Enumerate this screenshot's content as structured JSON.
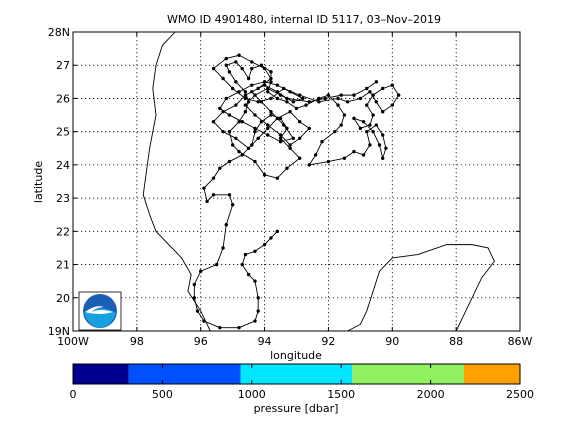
{
  "chart_data": [
    {
      "type": "line",
      "title": "WMO ID 4901480, internal ID 5117, 03–Nov–2019",
      "xlabel": "longitude",
      "ylabel": "latitude",
      "xlim": [
        -100,
        -86
      ],
      "ylim": [
        19,
        28
      ],
      "grid": true,
      "x_ticks": [
        -100,
        -98,
        -96,
        -94,
        -92,
        -90,
        -88,
        -86
      ],
      "x_tick_labels": [
        "100W",
        "98",
        "96",
        "94",
        "92",
        "90",
        "88",
        "86W"
      ],
      "y_ticks": [
        19,
        20,
        21,
        22,
        23,
        24,
        25,
        26,
        27,
        28
      ],
      "y_tick_labels": [
        "19N",
        "20",
        "21",
        "22",
        "23",
        "24",
        "25",
        "26",
        "27",
        "28N"
      ],
      "coastlines": [
        {
          "name": "west-coast",
          "points": [
            [
              -96.8,
              28
            ],
            [
              -97.2,
              27.6
            ],
            [
              -97.4,
              27.0
            ],
            [
              -97.5,
              26.3
            ],
            [
              -97.4,
              25.5
            ],
            [
              -97.6,
              24.5
            ],
            [
              -97.7,
              23.8
            ],
            [
              -97.8,
              23.1
            ],
            [
              -97.6,
              22.5
            ],
            [
              -97.4,
              22.0
            ],
            [
              -96.6,
              21.2
            ],
            [
              -96.3,
              20.7
            ],
            [
              -96.4,
              20.2
            ],
            [
              -96.0,
              19.6
            ],
            [
              -95.7,
              19.0
            ]
          ]
        },
        {
          "name": "yucatan",
          "points": [
            [
              -91.4,
              19.0
            ],
            [
              -91.0,
              19.2
            ],
            [
              -90.8,
              19.6
            ],
            [
              -90.6,
              20.2
            ],
            [
              -90.4,
              20.8
            ],
            [
              -90.0,
              21.2
            ],
            [
              -89.2,
              21.3
            ],
            [
              -88.3,
              21.6
            ],
            [
              -87.5,
              21.6
            ],
            [
              -87.0,
              21.5
            ],
            [
              -86.8,
              21.1
            ],
            [
              -87.2,
              20.6
            ],
            [
              -87.5,
              20.0
            ],
            [
              -87.8,
              19.4
            ],
            [
              -88.0,
              19.0
            ]
          ]
        }
      ],
      "series": [
        {
          "points": [
            [
              -93.6,
              22.0
            ],
            [
              -93.8,
              21.8
            ],
            [
              -94.0,
              21.6
            ],
            [
              -94.3,
              21.4
            ],
            [
              -94.6,
              21.3
            ],
            [
              -94.7,
              21.0
            ],
            [
              -94.5,
              20.7
            ],
            [
              -94.3,
              20.5
            ],
            [
              -94.2,
              20.0
            ],
            [
              -94.2,
              19.6
            ],
            [
              -94.3,
              19.3
            ],
            [
              -94.8,
              19.1
            ],
            [
              -95.4,
              19.1
            ],
            [
              -95.9,
              19.3
            ],
            [
              -96.1,
              19.6
            ],
            [
              -96.2,
              20.0
            ],
            [
              -96.2,
              20.4
            ],
            [
              -96.0,
              20.8
            ],
            [
              -95.5,
              21.0
            ],
            [
              -95.3,
              21.5
            ],
            [
              -95.2,
              22.2
            ],
            [
              -95.0,
              22.8
            ],
            [
              -95.1,
              23.1
            ],
            [
              -95.6,
              23.1
            ],
            [
              -95.8,
              22.9
            ],
            [
              -95.9,
              23.3
            ],
            [
              -95.6,
              23.6
            ],
            [
              -95.4,
              23.9
            ],
            [
              -95.1,
              24.1
            ],
            [
              -94.7,
              24.3
            ],
            [
              -94.4,
              24.6
            ],
            [
              -94.3,
              25.0
            ],
            [
              -94.1,
              25.3
            ],
            [
              -93.8,
              25.5
            ],
            [
              -93.5,
              25.4
            ],
            [
              -93.3,
              25.1
            ],
            [
              -93.5,
              24.8
            ],
            [
              -93.2,
              24.5
            ],
            [
              -92.9,
              24.2
            ],
            [
              -93.3,
              23.9
            ],
            [
              -93.6,
              23.6
            ],
            [
              -94.0,
              23.7
            ],
            [
              -94.3,
              24.1
            ],
            [
              -94.8,
              24.4
            ],
            [
              -95.0,
              24.6
            ],
            [
              -95.1,
              25.0
            ],
            [
              -94.8,
              25.3
            ],
            [
              -94.6,
              25.6
            ],
            [
              -94.5,
              25.9
            ],
            [
              -94.6,
              26.2
            ],
            [
              -94.9,
              26.5
            ],
            [
              -95.1,
              26.8
            ],
            [
              -95.2,
              27.0
            ],
            [
              -94.9,
              27.1
            ],
            [
              -94.7,
              26.9
            ],
            [
              -94.5,
              26.6
            ],
            [
              -94.4,
              26.9
            ],
            [
              -94.1,
              27.0
            ],
            [
              -93.8,
              26.8
            ],
            [
              -93.8,
              26.5
            ],
            [
              -93.9,
              26.2
            ],
            [
              -93.6,
              26.0
            ],
            [
              -93.3,
              25.9
            ],
            [
              -93.0,
              25.7
            ],
            [
              -92.7,
              25.8
            ],
            [
              -92.3,
              26.0
            ],
            [
              -92.0,
              26.1
            ],
            [
              -91.7,
              25.8
            ],
            [
              -91.5,
              25.5
            ],
            [
              -91.6,
              25.2
            ],
            [
              -91.8,
              25.0
            ],
            [
              -92.2,
              24.7
            ],
            [
              -92.4,
              24.3
            ],
            [
              -92.6,
              24.0
            ],
            [
              -92.0,
              24.1
            ],
            [
              -91.5,
              24.2
            ],
            [
              -91.2,
              24.4
            ],
            [
              -90.9,
              24.3
            ],
            [
              -90.7,
              24.6
            ],
            [
              -90.8,
              25.0
            ],
            [
              -90.5,
              25.2
            ],
            [
              -90.3,
              24.9
            ],
            [
              -90.2,
              24.5
            ],
            [
              -90.3,
              24.2
            ],
            [
              -90.4,
              24.6
            ],
            [
              -90.6,
              25.0
            ],
            [
              -90.9,
              25.3
            ],
            [
              -91.2,
              25.4
            ],
            [
              -91.0,
              25.1
            ],
            [
              -90.7,
              25.2
            ],
            [
              -90.6,
              25.5
            ],
            [
              -90.8,
              25.8
            ],
            [
              -90.6,
              26.1
            ],
            [
              -90.3,
              26.3
            ],
            [
              -90.0,
              26.4
            ],
            [
              -89.8,
              26.1
            ],
            [
              -90.0,
              25.8
            ],
            [
              -90.3,
              25.6
            ],
            [
              -90.5,
              25.9
            ],
            [
              -90.7,
              26.2
            ],
            [
              -91.0,
              26.0
            ],
            [
              -91.4,
              25.9
            ],
            [
              -91.7,
              26.0
            ],
            [
              -92.3,
              25.9
            ],
            [
              -92.9,
              26.1
            ],
            [
              -93.4,
              26.3
            ],
            [
              -93.8,
              26.0
            ],
            [
              -94.2,
              25.9
            ],
            [
              -94.6,
              26.0
            ],
            [
              -95.0,
              26.3
            ],
            [
              -95.3,
              26.6
            ],
            [
              -95.6,
              26.9
            ],
            [
              -95.2,
              27.2
            ],
            [
              -94.8,
              27.3
            ],
            [
              -94.4,
              27.1
            ],
            [
              -94.0,
              26.9
            ],
            [
              -93.8,
              26.6
            ],
            [
              -94.2,
              26.3
            ],
            [
              -94.6,
              26.1
            ],
            [
              -94.9,
              25.8
            ],
            [
              -95.3,
              25.6
            ],
            [
              -95.6,
              25.3
            ],
            [
              -95.3,
              25.0
            ],
            [
              -94.9,
              24.8
            ],
            [
              -94.5,
              24.5
            ],
            [
              -94.2,
              24.8
            ],
            [
              -93.9,
              25.1
            ],
            [
              -93.6,
              25.4
            ],
            [
              -93.2,
              25.6
            ],
            [
              -92.9,
              25.3
            ],
            [
              -92.6,
              25.1
            ],
            [
              -92.9,
              24.8
            ],
            [
              -93.2,
              24.6
            ],
            [
              -93.5,
              24.9
            ],
            [
              -93.9,
              25.2
            ],
            [
              -94.3,
              25.5
            ],
            [
              -94.6,
              25.8
            ],
            [
              -94.3,
              26.1
            ],
            [
              -93.9,
              26.3
            ],
            [
              -93.5,
              26.1
            ],
            [
              -93.1,
              25.9
            ],
            [
              -92.8,
              26.0
            ],
            [
              -93.2,
              26.2
            ],
            [
              -93.6,
              26.4
            ],
            [
              -94.0,
              26.5
            ],
            [
              -94.4,
              26.4
            ],
            [
              -94.8,
              26.2
            ],
            [
              -95.2,
              26.0
            ],
            [
              -95.4,
              25.7
            ],
            [
              -95.1,
              25.5
            ],
            [
              -94.7,
              25.3
            ],
            [
              -94.3,
              25.1
            ],
            [
              -93.9,
              24.9
            ],
            [
              -93.5,
              24.7
            ],
            [
              -93.1,
              24.8
            ],
            [
              -93.4,
              25.2
            ],
            [
              -93.8,
              25.6
            ],
            [
              -94.1,
              25.9
            ],
            [
              -94.4,
              26.2
            ],
            [
              -94.0,
              26.4
            ],
            [
              -93.6,
              26.2
            ],
            [
              -93.3,
              26.0
            ],
            [
              -92.6,
              25.9
            ],
            [
              -92.1,
              26.0
            ],
            [
              -91.6,
              26.1
            ],
            [
              -91.2,
              26.1
            ],
            [
              -90.8,
              26.3
            ],
            [
              -90.5,
              26.5
            ]
          ]
        }
      ]
    },
    {
      "type": "colorbar",
      "xlabel": "pressure [dbar]",
      "xlim": [
        0,
        2500
      ],
      "ticks": [
        0,
        500,
        1000,
        1500,
        2000,
        2500
      ],
      "bands": [
        {
          "from": 0,
          "to": 312,
          "color": "#00008f"
        },
        {
          "from": 312,
          "to": 937,
          "color": "#0050ff"
        },
        {
          "from": 937,
          "to": 1562,
          "color": "#00e6ff"
        },
        {
          "from": 1562,
          "to": 2187,
          "color": "#90f060"
        },
        {
          "from": 2187,
          "to": 2500,
          "color": "#ffa000"
        }
      ]
    }
  ],
  "logo": {
    "text": "NOAA",
    "colors": {
      "outer": "#1a5fb4",
      "inner": "#16a0e0",
      "bird": "#ffffff"
    }
  }
}
